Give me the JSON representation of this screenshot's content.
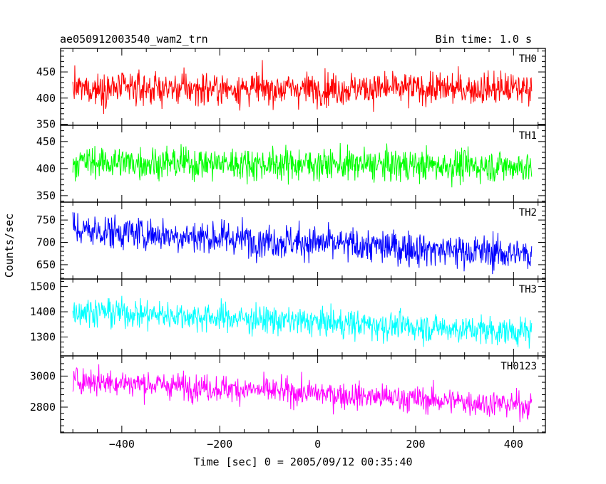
{
  "header": {
    "title": "ae050912003540_wam2_trn",
    "bin_time": "Bin time: 1.0 s"
  },
  "chart_data": {
    "type": "line",
    "ylabel": "Counts/sec",
    "xlabel": "Time [sec] 0 = 2005/09/12 00:35:40",
    "xlim": [
      -525,
      465
    ],
    "x_ticks": [
      -400,
      -200,
      0,
      200,
      400
    ],
    "x_tick_labels": [
      "−400",
      "−200",
      "0",
      "200",
      "400"
    ],
    "x_data_range": [
      -500,
      437
    ],
    "bin_seconds": 1.0,
    "panels": [
      {
        "name": "TH0",
        "color": "#ff0000",
        "ylim": [
          348,
          495
        ],
        "y_ticks": [
          350,
          400,
          450
        ],
        "y_tick_labels": [
          "350",
          "400",
          "450"
        ],
        "level_start": 418,
        "level_end": 418,
        "noise": 22
      },
      {
        "name": "TH1",
        "color": "#00ff00",
        "ylim": [
          338,
          480
        ],
        "y_ticks": [
          350,
          400,
          450
        ],
        "y_tick_labels": [
          "350",
          "400",
          "450"
        ],
        "level_start": 412,
        "level_end": 404,
        "noise": 21
      },
      {
        "name": "TH2",
        "color": "#0000ff",
        "ylim": [
          618,
          790
        ],
        "y_ticks": [
          650,
          700,
          750
        ],
        "y_tick_labels": [
          "650",
          "700",
          "750"
        ],
        "level_start": 728,
        "level_end": 672,
        "noise": 27
      },
      {
        "name": "TH3",
        "color": "#00ffff",
        "ylim": [
          1225,
          1530
        ],
        "y_ticks": [
          1300,
          1400,
          1500
        ],
        "y_tick_labels": [
          "1300",
          "1400",
          "1500"
        ],
        "level_start": 1405,
        "level_end": 1318,
        "noise": 40
      },
      {
        "name": "TH0123",
        "color": "#ff00ff",
        "ylim": [
          2635,
          3130
        ],
        "y_ticks": [
          2800,
          3000
        ],
        "y_tick_labels": [
          "2800",
          "3000"
        ],
        "level_start": 2975,
        "level_end": 2810,
        "noise": 60
      }
    ]
  }
}
